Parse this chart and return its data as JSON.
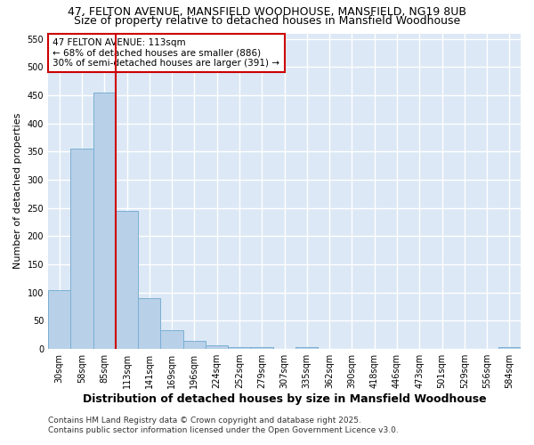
{
  "title_line1": "47, FELTON AVENUE, MANSFIELD WOODHOUSE, MANSFIELD, NG19 8UB",
  "title_line2": "Size of property relative to detached houses in Mansfield Woodhouse",
  "xlabel": "Distribution of detached houses by size in Mansfield Woodhouse",
  "ylabel": "Number of detached properties",
  "categories": [
    "30sqm",
    "58sqm",
    "85sqm",
    "113sqm",
    "141sqm",
    "169sqm",
    "196sqm",
    "224sqm",
    "252sqm",
    "279sqm",
    "307sqm",
    "335sqm",
    "362sqm",
    "390sqm",
    "418sqm",
    "446sqm",
    "473sqm",
    "501sqm",
    "529sqm",
    "556sqm",
    "584sqm"
  ],
  "values": [
    105,
    355,
    455,
    245,
    90,
    33,
    15,
    7,
    3,
    3,
    0,
    3,
    0,
    0,
    0,
    0,
    0,
    0,
    0,
    0,
    3
  ],
  "bar_color": "#b8d0e8",
  "bar_edge_color": "#7aafd4",
  "red_line_index": 3,
  "annotation_line1": "47 FELTON AVENUE: 113sqm",
  "annotation_line2": "← 68% of detached houses are smaller (886)",
  "annotation_line3": "30% of semi-detached houses are larger (391) →",
  "annotation_box_facecolor": "#ffffff",
  "annotation_box_edgecolor": "#cc0000",
  "red_line_color": "#cc0000",
  "ylim": [
    0,
    560
  ],
  "yticks": [
    0,
    50,
    100,
    150,
    200,
    250,
    300,
    350,
    400,
    450,
    500,
    550
  ],
  "footer_text": "Contains HM Land Registry data © Crown copyright and database right 2025.\nContains public sector information licensed under the Open Government Licence v3.0.",
  "fig_background_color": "#ffffff",
  "plot_background_color": "#dce8f5",
  "grid_color": "#ffffff",
  "title_fontsize": 9,
  "subtitle_fontsize": 9,
  "tick_fontsize": 7,
  "xlabel_fontsize": 9,
  "ylabel_fontsize": 8,
  "annotation_fontsize": 7.5,
  "footer_fontsize": 6.5
}
